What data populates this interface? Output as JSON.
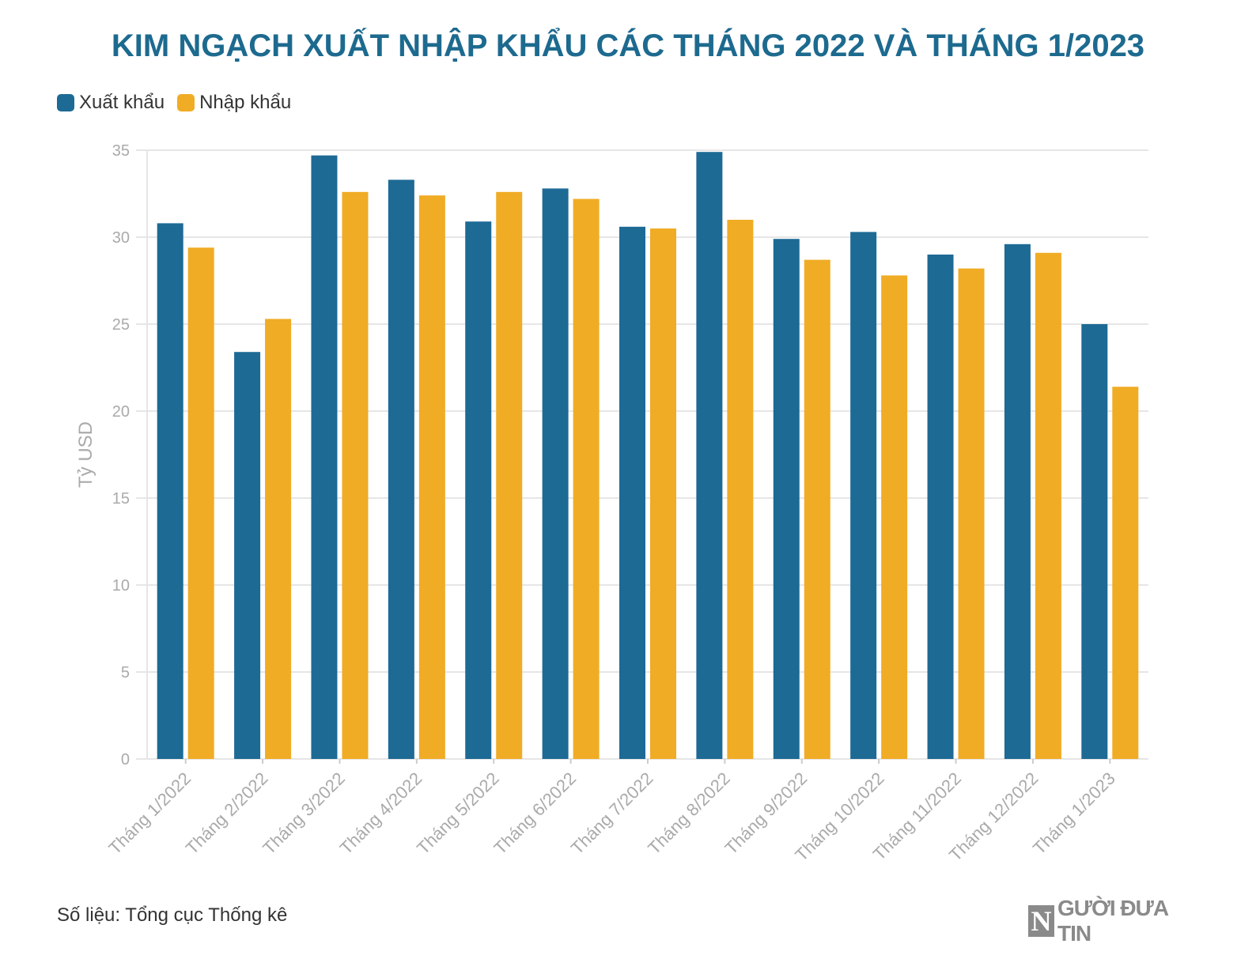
{
  "title": "KIM NGẠCH XUẤT NHẬP KHẨU CÁC THÁNG 2022 VÀ THÁNG 1/2023",
  "source": "Số liệu: Tổng cục Thống kê",
  "logo": {
    "letter": "N",
    "text": "GƯỜI ĐƯA TIN"
  },
  "colors": {
    "export": "#1d6a95",
    "import": "#f0ac25",
    "title": "#1d6a8f",
    "grid": "#e6e6e6",
    "axis_text": "#aaaaaa"
  },
  "chart_data": {
    "type": "bar",
    "title": "KIM NGẠCH XUẤT NHẬP KHẨU CÁC THÁNG 2022 VÀ THÁNG 1/2023",
    "ylabel": "Tỷ USD",
    "xlabel": "",
    "ylim": [
      0,
      35
    ],
    "yticks": [
      0,
      5,
      10,
      15,
      20,
      25,
      30,
      35
    ],
    "grid": true,
    "legend_position": "top-left",
    "categories": [
      "Tháng 1/2022",
      "Tháng 2/2022",
      "Tháng 3/2022",
      "Tháng 4/2022",
      "Tháng 5/2022",
      "Tháng 6/2022",
      "Tháng 7/2022",
      "Tháng 8/2022",
      "Tháng 9/2022",
      "Tháng 10/2022",
      "Tháng 11/2022",
      "Tháng 12/2022",
      "Tháng 1/2023"
    ],
    "series": [
      {
        "name": "Xuất khẩu",
        "values": [
          30.8,
          23.4,
          34.7,
          33.3,
          30.9,
          32.8,
          30.6,
          34.9,
          29.9,
          30.3,
          29.0,
          29.6,
          25.0
        ]
      },
      {
        "name": "Nhập khẩu",
        "values": [
          29.4,
          25.3,
          32.6,
          32.4,
          32.6,
          32.2,
          30.5,
          31.0,
          28.7,
          27.8,
          28.2,
          29.1,
          21.4
        ]
      }
    ]
  }
}
